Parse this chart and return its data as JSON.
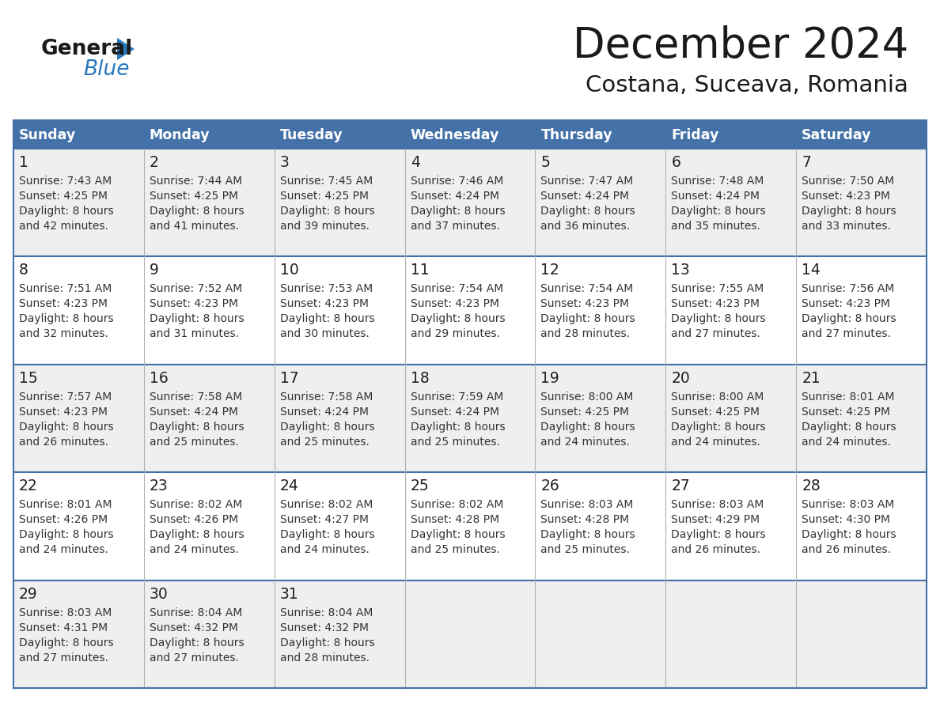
{
  "title": "December 2024",
  "subtitle": "Costana, Suceava, Romania",
  "days_of_week": [
    "Sunday",
    "Monday",
    "Tuesday",
    "Wednesday",
    "Thursday",
    "Friday",
    "Saturday"
  ],
  "header_bg": "#4472a8",
  "header_text": "#FFFFFF",
  "row_bg_odd": "#EFEFEF",
  "row_bg_even": "#FFFFFF",
  "row_border_color": "#4472a8",
  "col_border_color": "#B0B0B0",
  "day_num_color": "#222222",
  "text_color": "#333333",
  "title_color": "#1a1a1a",
  "logo_general_color": "#1a1a1a",
  "logo_blue_color": "#2878be",
  "calendar_data": [
    [
      {
        "day": 1,
        "sunrise": "7:43 AM",
        "sunset": "4:25 PM",
        "daylight_min": "42"
      },
      {
        "day": 2,
        "sunrise": "7:44 AM",
        "sunset": "4:25 PM",
        "daylight_min": "41"
      },
      {
        "day": 3,
        "sunrise": "7:45 AM",
        "sunset": "4:25 PM",
        "daylight_min": "39"
      },
      {
        "day": 4,
        "sunrise": "7:46 AM",
        "sunset": "4:24 PM",
        "daylight_min": "37"
      },
      {
        "day": 5,
        "sunrise": "7:47 AM",
        "sunset": "4:24 PM",
        "daylight_min": "36"
      },
      {
        "day": 6,
        "sunrise": "7:48 AM",
        "sunset": "4:24 PM",
        "daylight_min": "35"
      },
      {
        "day": 7,
        "sunrise": "7:50 AM",
        "sunset": "4:23 PM",
        "daylight_min": "33"
      }
    ],
    [
      {
        "day": 8,
        "sunrise": "7:51 AM",
        "sunset": "4:23 PM",
        "daylight_min": "32"
      },
      {
        "day": 9,
        "sunrise": "7:52 AM",
        "sunset": "4:23 PM",
        "daylight_min": "31"
      },
      {
        "day": 10,
        "sunrise": "7:53 AM",
        "sunset": "4:23 PM",
        "daylight_min": "30"
      },
      {
        "day": 11,
        "sunrise": "7:54 AM",
        "sunset": "4:23 PM",
        "daylight_min": "29"
      },
      {
        "day": 12,
        "sunrise": "7:54 AM",
        "sunset": "4:23 PM",
        "daylight_min": "28"
      },
      {
        "day": 13,
        "sunrise": "7:55 AM",
        "sunset": "4:23 PM",
        "daylight_min": "27"
      },
      {
        "day": 14,
        "sunrise": "7:56 AM",
        "sunset": "4:23 PM",
        "daylight_min": "27"
      }
    ],
    [
      {
        "day": 15,
        "sunrise": "7:57 AM",
        "sunset": "4:23 PM",
        "daylight_min": "26"
      },
      {
        "day": 16,
        "sunrise": "7:58 AM",
        "sunset": "4:24 PM",
        "daylight_min": "25"
      },
      {
        "day": 17,
        "sunrise": "7:58 AM",
        "sunset": "4:24 PM",
        "daylight_min": "25"
      },
      {
        "day": 18,
        "sunrise": "7:59 AM",
        "sunset": "4:24 PM",
        "daylight_min": "25"
      },
      {
        "day": 19,
        "sunrise": "8:00 AM",
        "sunset": "4:25 PM",
        "daylight_min": "24"
      },
      {
        "day": 20,
        "sunrise": "8:00 AM",
        "sunset": "4:25 PM",
        "daylight_min": "24"
      },
      {
        "day": 21,
        "sunrise": "8:01 AM",
        "sunset": "4:25 PM",
        "daylight_min": "24"
      }
    ],
    [
      {
        "day": 22,
        "sunrise": "8:01 AM",
        "sunset": "4:26 PM",
        "daylight_min": "24"
      },
      {
        "day": 23,
        "sunrise": "8:02 AM",
        "sunset": "4:26 PM",
        "daylight_min": "24"
      },
      {
        "day": 24,
        "sunrise": "8:02 AM",
        "sunset": "4:27 PM",
        "daylight_min": "24"
      },
      {
        "day": 25,
        "sunrise": "8:02 AM",
        "sunset": "4:28 PM",
        "daylight_min": "25"
      },
      {
        "day": 26,
        "sunrise": "8:03 AM",
        "sunset": "4:28 PM",
        "daylight_min": "25"
      },
      {
        "day": 27,
        "sunrise": "8:03 AM",
        "sunset": "4:29 PM",
        "daylight_min": "26"
      },
      {
        "day": 28,
        "sunrise": "8:03 AM",
        "sunset": "4:30 PM",
        "daylight_min": "26"
      }
    ],
    [
      {
        "day": 29,
        "sunrise": "8:03 AM",
        "sunset": "4:31 PM",
        "daylight_min": "27"
      },
      {
        "day": 30,
        "sunrise": "8:04 AM",
        "sunset": "4:32 PM",
        "daylight_min": "27"
      },
      {
        "day": 31,
        "sunrise": "8:04 AM",
        "sunset": "4:32 PM",
        "daylight_min": "28"
      },
      null,
      null,
      null,
      null
    ]
  ]
}
